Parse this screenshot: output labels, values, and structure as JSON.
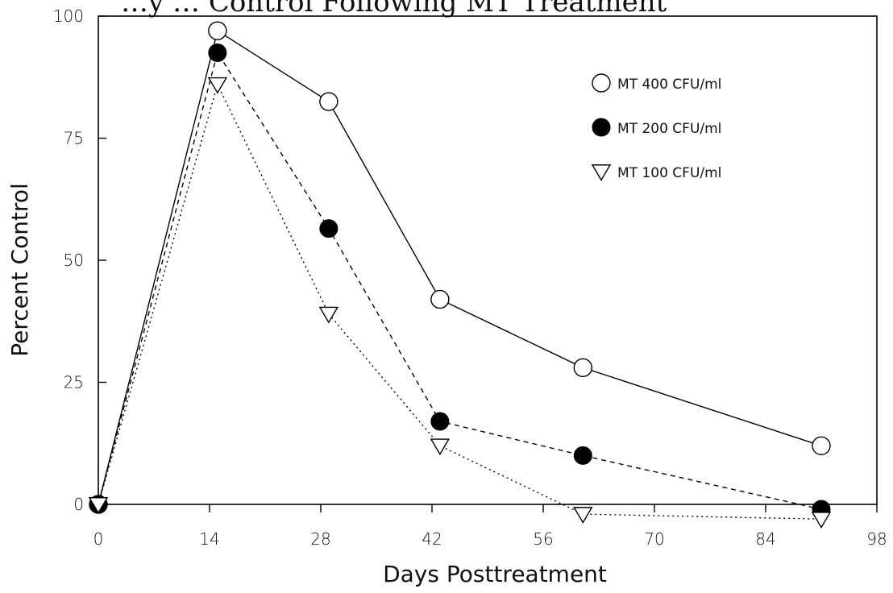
{
  "chart_data": {
    "type": "line",
    "title": "…y … Control Following MT Treatment",
    "xlabel": "Days Posttreatment",
    "ylabel": "Percent Control",
    "xlim": [
      0,
      98
    ],
    "ylim": [
      0,
      100
    ],
    "x_ticks": [
      0,
      14,
      28,
      42,
      56,
      70,
      84,
      98
    ],
    "y_ticks": [
      0,
      25,
      50,
      75,
      100
    ],
    "x_tick_labels": [
      "0",
      "14",
      "28",
      "42",
      "56",
      "70",
      "84",
      "98"
    ],
    "y_tick_labels": [
      "0",
      "25",
      "50",
      "75",
      "100"
    ],
    "grid": false,
    "legend_position": "top-right",
    "series": [
      {
        "name": "MT 400 CFU/ml",
        "marker": "open-circle",
        "line_style": "solid",
        "color": "#000000",
        "x": [
          0,
          15,
          29,
          43,
          61,
          91
        ],
        "y": [
          0,
          97,
          82.5,
          42,
          28,
          12
        ]
      },
      {
        "name": "MT 200 CFU/ml",
        "marker": "filled-circle",
        "line_style": "dashed",
        "color": "#000000",
        "x": [
          0,
          15,
          29,
          43,
          61,
          91
        ],
        "y": [
          0,
          92.5,
          56.5,
          17,
          10,
          -1
        ]
      },
      {
        "name": "MT 100 CFU/ml",
        "marker": "open-triangle-down",
        "line_style": "dotted",
        "color": "#000000",
        "x": [
          0,
          15,
          29,
          43,
          61,
          91
        ],
        "y": [
          0,
          86,
          39,
          12,
          -2,
          -3
        ]
      }
    ]
  }
}
